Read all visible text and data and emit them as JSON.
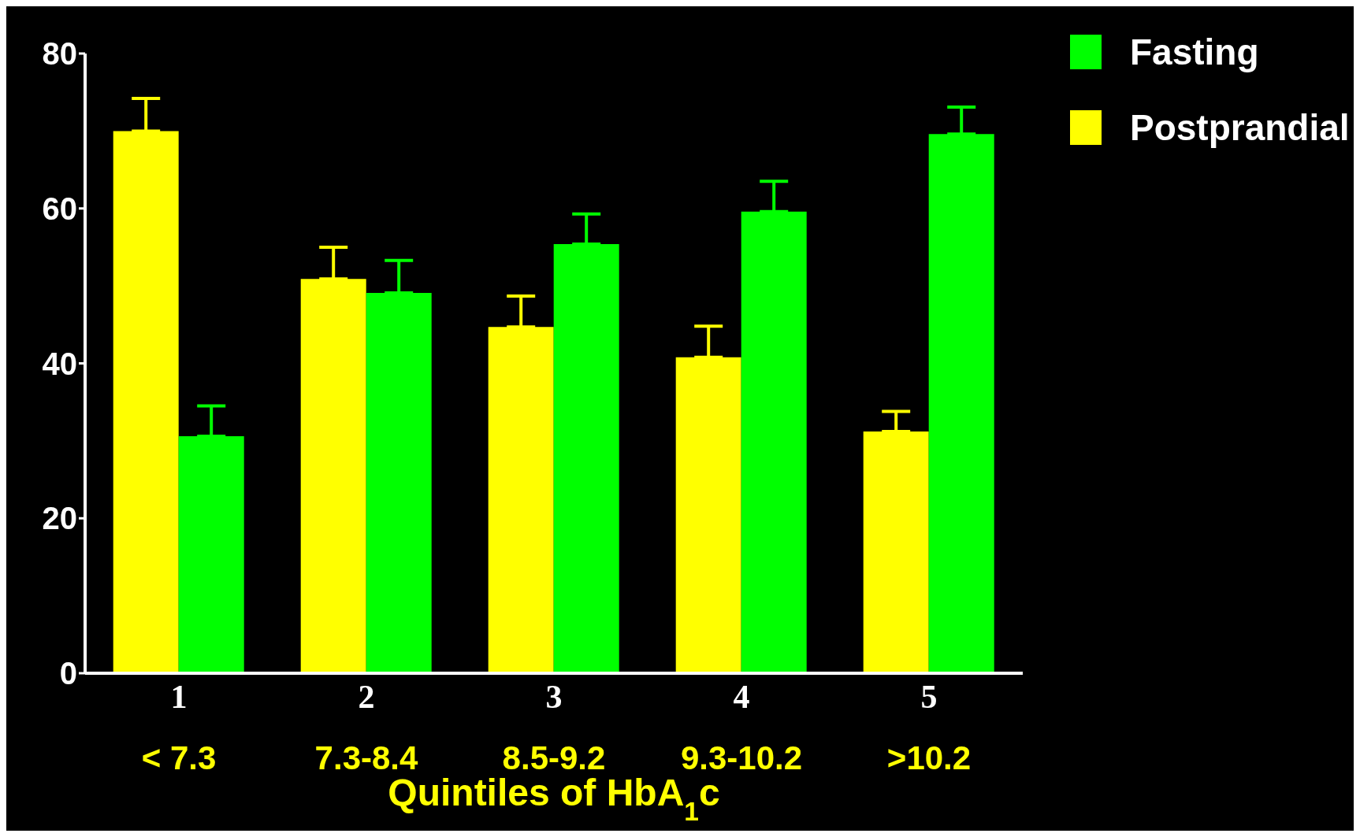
{
  "chart_data": {
    "type": "bar",
    "categories": [
      "1\n< 7.3",
      "2\n7.3-8.4",
      "3\n8.5-9.2",
      "4\n9.3-10.2",
      "5\n>10.2"
    ],
    "xlabel": "Quintiles of HbA$_{1}$c",
    "series": [
      {
        "name": "Postprandial",
        "color": "#ffff00",
        "values": [
          70,
          50.9,
          44.7,
          40.8,
          31.2
        ],
        "errors": [
          [
            70,
            74.2
          ],
          [
            50.9,
            55
          ],
          [
            44.7,
            48.7
          ],
          [
            40.8,
            44.8
          ],
          [
            31.2,
            33.8
          ]
        ]
      },
      {
        "name": "Fasting",
        "color": "#00ff00",
        "values": [
          30.6,
          49.1,
          55.4,
          59.6,
          69.6
        ],
        "errors": [
          [
            30.6,
            34.5
          ],
          [
            49.1,
            53.3
          ],
          [
            55.4,
            59.3
          ],
          [
            59.6,
            63.5
          ],
          [
            69.6,
            73.1
          ]
        ]
      }
    ],
    "ylim": [
      0,
      80
    ],
    "yticks": [
      0,
      20,
      40,
      60,
      80
    ],
    "grid": false,
    "legend": "top right"
  }
}
